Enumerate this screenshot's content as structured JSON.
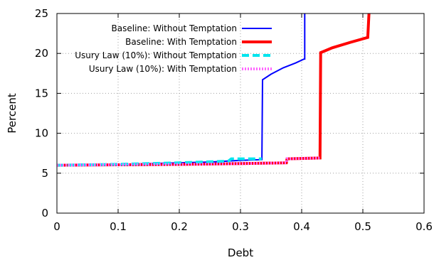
{
  "chart_data": {
    "type": "line",
    "title": "",
    "xlabel": "Debt",
    "ylabel": "Percent",
    "xlim": [
      0,
      0.6
    ],
    "ylim": [
      0,
      25
    ],
    "xticks": [
      0,
      0.1,
      0.2,
      0.3,
      0.4,
      0.5,
      0.6
    ],
    "xtick_labels": [
      "0",
      "0.1",
      "0.2",
      "0.3",
      "0.4",
      "0.5",
      "0.6"
    ],
    "yticks": [
      0,
      5,
      10,
      15,
      20,
      25
    ],
    "ytick_labels": [
      "0",
      "5",
      "10",
      "15",
      "20",
      "25"
    ],
    "grid": true,
    "legend_position": "top-right",
    "series": [
      {
        "name": "Baseline: Without Temptation",
        "color": "#0000ff",
        "style": "solid",
        "x": [
          0,
          0.1,
          0.2,
          0.25,
          0.3,
          0.335,
          0.336,
          0.35,
          0.37,
          0.39,
          0.404,
          0.405,
          0.405
        ],
        "y": [
          6.0,
          6.1,
          6.3,
          6.4,
          6.6,
          6.7,
          16.7,
          17.4,
          18.2,
          18.8,
          19.3,
          19.3,
          25.0
        ]
      },
      {
        "name": "Baseline: With Temptation",
        "color": "#ff0000",
        "style": "solid",
        "x": [
          0,
          0.1,
          0.2,
          0.3,
          0.375,
          0.376,
          0.43,
          0.431,
          0.45,
          0.48,
          0.508,
          0.508,
          0.51
        ],
        "y": [
          6.0,
          6.05,
          6.1,
          6.2,
          6.3,
          6.8,
          6.9,
          20.1,
          20.7,
          21.4,
          22.0,
          22.0,
          25.0
        ]
      },
      {
        "name": "Usury Law (10%): Without Temptation",
        "color": "#00e5ee",
        "style": "dashed",
        "x": [
          0,
          0.1,
          0.2,
          0.28,
          0.285,
          0.335
        ],
        "y": [
          6.0,
          6.1,
          6.3,
          6.5,
          6.8,
          6.8
        ]
      },
      {
        "name": "Usury Law (10%): With Temptation",
        "color": "#ff66ff",
        "style": "dotted",
        "x": [
          0,
          0.1,
          0.2,
          0.3,
          0.375,
          0.376,
          0.43
        ],
        "y": [
          6.0,
          6.05,
          6.1,
          6.2,
          6.3,
          6.8,
          6.9
        ]
      }
    ]
  }
}
